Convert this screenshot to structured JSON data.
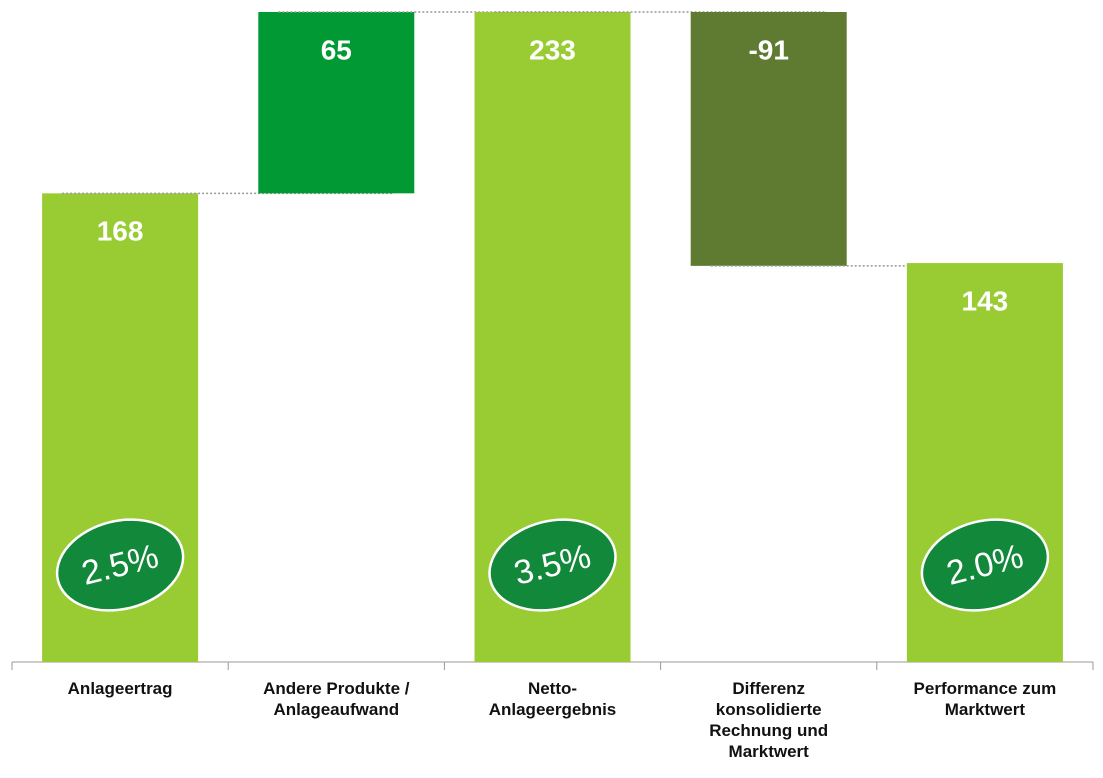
{
  "chart_data": {
    "type": "waterfall",
    "categories": [
      "Anlageertrag",
      "Andere Produkte / Anlageaufwand",
      "Netto-Anlageergebnis",
      "Differenz konsolidierte Rechnung und Marktwert",
      "Performance zum Marktwert"
    ],
    "values": [
      168,
      65,
      233,
      -91,
      143
    ],
    "measures": [
      "absolute",
      "relative",
      "total",
      "relative",
      "total"
    ],
    "colors": {
      "total": "#99cc33",
      "increase": "#009933",
      "decrease": "#5e7b31"
    },
    "percent_labels": [
      "2.5%",
      null,
      "3.5%",
      null,
      "2.0%"
    ]
  }
}
